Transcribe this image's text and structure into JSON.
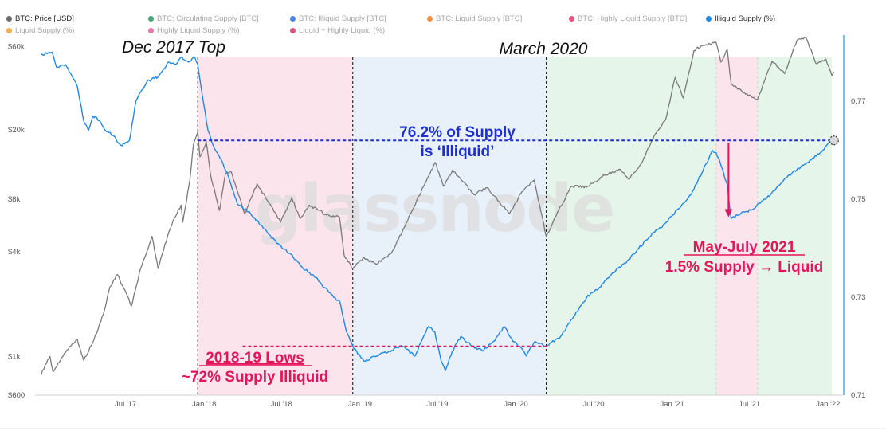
{
  "legend": [
    {
      "label": "BTC: Price [USD]",
      "color": "#6b6b6b",
      "active": true
    },
    {
      "label": "BTC: Circulating Supply [BTC]",
      "color": "#1f9a5a",
      "active": false
    },
    {
      "label": "BTC: Illiquid Supply [BTC]",
      "color": "#2a6fdb",
      "active": false
    },
    {
      "label": "BTC: Liquid Supply [BTC]",
      "color": "#f07a1a",
      "active": false
    },
    {
      "label": "BTC: Highly Liquid Supply [BTC]",
      "color": "#e8336b",
      "active": false
    },
    {
      "label": "Illiquid Supply (%)",
      "color": "#1e88e5",
      "active": true
    },
    {
      "label": "Liquid Supply (%)",
      "color": "#f0a030",
      "active": false
    },
    {
      "label": "Highly Liquid Supply (%)",
      "color": "#e25fa0",
      "active": false
    },
    {
      "label": "Liquid + Highly Liquid (%)",
      "color": "#d3356d",
      "active": false
    }
  ],
  "colors": {
    "price": "#7a7a7a",
    "illiquid": "#1e88e5",
    "annotation_blue": "#1d2fd1",
    "annotation_red": "#e3155b",
    "phase_pink": "#fce4ec",
    "phase_blue": "#e8f0fa",
    "phase_green": "#e6f5ea",
    "watermark": "#dcdcdc"
  },
  "chart_data": {
    "type": "line",
    "watermark": "glassnode",
    "x_ticks": [
      "Jul '17",
      "Jan '18",
      "Jul '18",
      "Jan '19",
      "Jul '19",
      "Jan '20",
      "Jul '20",
      "Jan '21",
      "Jul '21",
      "Jan '22"
    ],
    "y_left": {
      "scale": "log",
      "range": [
        600,
        70000
      ],
      "ticks": [
        "$600",
        "$1k",
        "$4k",
        "$8k",
        "$20k",
        "$60k"
      ]
    },
    "y_right": {
      "scale": "linear",
      "range": [
        0.71,
        0.7835
      ],
      "ticks": [
        "0.71",
        "0.73",
        "0.75",
        "0.77"
      ]
    },
    "phases": [
      {
        "from": "2017-12-17",
        "to": "2018-12-15",
        "fill": "pink"
      },
      {
        "from": "2018-12-15",
        "to": "2020-03-12",
        "fill": "blue"
      },
      {
        "from": "2020-03-12",
        "to": "2021-04-14",
        "fill": "green"
      },
      {
        "from": "2021-04-14",
        "to": "2021-07-20",
        "fill": "pink"
      },
      {
        "from": "2021-07-20",
        "to": "2022-01-10",
        "fill": "green"
      }
    ],
    "vlines": [
      "2017-12-17",
      "2018-12-15",
      "2020-03-12"
    ],
    "series": [
      {
        "name": "BTC: Price [USD]",
        "axis": "left",
        "points": [
          [
            "2016-12-15",
            780
          ],
          [
            "2016-12-25",
            900
          ],
          [
            "2017-01-05",
            1000
          ],
          [
            "2017-01-12",
            820
          ],
          [
            "2017-02-01",
            980
          ],
          [
            "2017-02-23",
            1150
          ],
          [
            "2017-03-10",
            1250
          ],
          [
            "2017-03-25",
            950
          ],
          [
            "2017-04-15",
            1200
          ],
          [
            "2017-05-10",
            1750
          ],
          [
            "2017-05-25",
            2500
          ],
          [
            "2017-06-12",
            2950
          ],
          [
            "2017-07-15",
            1950
          ],
          [
            "2017-08-05",
            3200
          ],
          [
            "2017-09-01",
            4900
          ],
          [
            "2017-09-15",
            3200
          ],
          [
            "2017-10-01",
            4400
          ],
          [
            "2017-10-20",
            6000
          ],
          [
            "2017-11-08",
            7400
          ],
          [
            "2017-11-12",
            5900
          ],
          [
            "2017-11-29",
            10500
          ],
          [
            "2017-12-07",
            16500
          ],
          [
            "2017-12-17",
            19500
          ],
          [
            "2017-12-22",
            14000
          ],
          [
            "2018-01-06",
            17100
          ],
          [
            "2018-01-16",
            11000
          ],
          [
            "2018-02-06",
            6900
          ],
          [
            "2018-02-20",
            11200
          ],
          [
            "2018-03-05",
            11500
          ],
          [
            "2018-04-06",
            6600
          ],
          [
            "2018-05-05",
            9800
          ],
          [
            "2018-06-29",
            5900
          ],
          [
            "2018-07-25",
            8200
          ],
          [
            "2018-08-14",
            6200
          ],
          [
            "2018-09-04",
            7400
          ],
          [
            "2018-10-15",
            6500
          ],
          [
            "2018-11-14",
            6300
          ],
          [
            "2018-11-25",
            3800
          ],
          [
            "2018-12-15",
            3200
          ],
          [
            "2019-01-10",
            3700
          ],
          [
            "2019-02-07",
            3400
          ],
          [
            "2019-03-15",
            3900
          ],
          [
            "2019-04-10",
            5200
          ],
          [
            "2019-05-14",
            7900
          ],
          [
            "2019-06-26",
            13000
          ],
          [
            "2019-07-16",
            9500
          ],
          [
            "2019-08-06",
            11800
          ],
          [
            "2019-09-25",
            8500
          ],
          [
            "2019-10-26",
            9300
          ],
          [
            "2019-12-17",
            6600
          ],
          [
            "2020-01-15",
            8800
          ],
          [
            "2020-02-13",
            10300
          ],
          [
            "2020-03-12",
            4900
          ],
          [
            "2020-04-10",
            6900
          ],
          [
            "2020-05-10",
            9500
          ],
          [
            "2020-06-15",
            9400
          ],
          [
            "2020-07-27",
            11000
          ],
          [
            "2020-09-01",
            11900
          ],
          [
            "2020-09-22",
            10400
          ],
          [
            "2020-10-21",
            12800
          ],
          [
            "2020-11-20",
            18500
          ],
          [
            "2020-12-17",
            23000
          ],
          [
            "2021-01-08",
            40000
          ],
          [
            "2021-01-27",
            30400
          ],
          [
            "2021-02-21",
            57000
          ],
          [
            "2021-03-13",
            61000
          ],
          [
            "2021-04-14",
            63500
          ],
          [
            "2021-04-25",
            49000
          ],
          [
            "2021-05-10",
            58000
          ],
          [
            "2021-05-19",
            37000
          ],
          [
            "2021-06-22",
            32000
          ],
          [
            "2021-07-20",
            30000
          ],
          [
            "2021-08-23",
            49500
          ],
          [
            "2021-09-21",
            42000
          ],
          [
            "2021-10-20",
            65000
          ],
          [
            "2021-11-10",
            68000
          ],
          [
            "2021-12-04",
            48000
          ],
          [
            "2021-12-27",
            51000
          ],
          [
            "2022-01-10",
            41000
          ],
          [
            "2022-01-15",
            43000
          ]
        ]
      },
      {
        "name": "Illiquid Supply (%)",
        "axis": "right",
        "points": [
          [
            "2016-12-15",
            0.7795
          ],
          [
            "2017-01-10",
            0.78
          ],
          [
            "2017-01-20",
            0.777
          ],
          [
            "2017-02-10",
            0.7775
          ],
          [
            "2017-03-10",
            0.773
          ],
          [
            "2017-03-25",
            0.766
          ],
          [
            "2017-04-05",
            0.764
          ],
          [
            "2017-04-15",
            0.767
          ],
          [
            "2017-05-01",
            0.766
          ],
          [
            "2017-05-15",
            0.764
          ],
          [
            "2017-06-01",
            0.763
          ],
          [
            "2017-06-20",
            0.761
          ],
          [
            "2017-07-10",
            0.762
          ],
          [
            "2017-07-25",
            0.77
          ],
          [
            "2017-08-20",
            0.774
          ],
          [
            "2017-09-15",
            0.775
          ],
          [
            "2017-10-10",
            0.778
          ],
          [
            "2017-10-25",
            0.7775
          ],
          [
            "2017-11-10",
            0.779
          ],
          [
            "2017-11-25",
            0.778
          ],
          [
            "2017-12-10",
            0.779
          ],
          [
            "2017-12-17",
            0.7775
          ],
          [
            "2017-12-28",
            0.771
          ],
          [
            "2018-01-10",
            0.764
          ],
          [
            "2018-01-22",
            0.761
          ],
          [
            "2018-02-10",
            0.758
          ],
          [
            "2018-03-01",
            0.754
          ],
          [
            "2018-03-20",
            0.749
          ],
          [
            "2018-04-20",
            0.747
          ],
          [
            "2018-05-20",
            0.744
          ],
          [
            "2018-06-20",
            0.741
          ],
          [
            "2018-07-20",
            0.739
          ],
          [
            "2018-08-20",
            0.736
          ],
          [
            "2018-09-20",
            0.734
          ],
          [
            "2018-10-20",
            0.731
          ],
          [
            "2018-11-15",
            0.729
          ],
          [
            "2018-11-30",
            0.723
          ],
          [
            "2018-12-15",
            0.72
          ],
          [
            "2019-01-10",
            0.717
          ],
          [
            "2019-02-10",
            0.718
          ],
          [
            "2019-03-10",
            0.719
          ],
          [
            "2019-04-10",
            0.72
          ],
          [
            "2019-05-10",
            0.718
          ],
          [
            "2019-05-25",
            0.721
          ],
          [
            "2019-06-10",
            0.724
          ],
          [
            "2019-06-25",
            0.723
          ],
          [
            "2019-07-10",
            0.717
          ],
          [
            "2019-07-20",
            0.715
          ],
          [
            "2019-08-05",
            0.719
          ],
          [
            "2019-08-25",
            0.722
          ],
          [
            "2019-09-20",
            0.72
          ],
          [
            "2019-10-15",
            0.719
          ],
          [
            "2019-11-10",
            0.721
          ],
          [
            "2019-12-05",
            0.724
          ],
          [
            "2019-12-25",
            0.721
          ],
          [
            "2020-01-15",
            0.7195
          ],
          [
            "2020-01-25",
            0.718
          ],
          [
            "2020-02-15",
            0.721
          ],
          [
            "2020-03-12",
            0.72
          ],
          [
            "2020-04-15",
            0.722
          ],
          [
            "2020-05-15",
            0.726
          ],
          [
            "2020-06-15",
            0.73
          ],
          [
            "2020-07-15",
            0.732
          ],
          [
            "2020-08-15",
            0.735
          ],
          [
            "2020-09-15",
            0.737
          ],
          [
            "2020-10-15",
            0.74
          ],
          [
            "2020-11-15",
            0.743
          ],
          [
            "2020-12-15",
            0.745
          ],
          [
            "2021-01-15",
            0.748
          ],
          [
            "2021-02-15",
            0.751
          ],
          [
            "2021-03-15",
            0.756
          ],
          [
            "2021-04-05",
            0.76
          ],
          [
            "2021-04-14",
            0.7595
          ],
          [
            "2021-04-25",
            0.757
          ],
          [
            "2021-05-10",
            0.753
          ],
          [
            "2021-05-19",
            0.746
          ],
          [
            "2021-06-10",
            0.747
          ],
          [
            "2021-07-10",
            0.748
          ],
          [
            "2021-07-20",
            0.749
          ],
          [
            "2021-08-20",
            0.751
          ],
          [
            "2021-09-20",
            0.754
          ],
          [
            "2021-10-20",
            0.756
          ],
          [
            "2021-11-20",
            0.758
          ],
          [
            "2021-12-20",
            0.76
          ],
          [
            "2022-01-10",
            0.762
          ],
          [
            "2022-01-15",
            0.7615
          ]
        ]
      }
    ],
    "hlines": [
      {
        "y": 0.762,
        "axis": "right",
        "from": "2017-12-17",
        "to": "2022-01-18",
        "color": "blue"
      },
      {
        "y": 0.72,
        "axis": "right",
        "from": "2018-04-01",
        "to": "2020-03-20",
        "color": "red"
      }
    ],
    "arrow": {
      "x": "2021-05-13",
      "from": 0.7615,
      "to": 0.7465
    }
  },
  "annotations": {
    "dec_top": "Dec 2017 Top",
    "march": "March 2020",
    "illiquid_line1": "76.2% of Supply",
    "illiquid_line2": "is ‘Illiquid’",
    "lows_line1": "2018-19 Lows",
    "lows_line2": "~72% Supply Illiquid",
    "may_line1": "May-July 2021",
    "may_line2": "1.5% Supply → Liquid"
  }
}
